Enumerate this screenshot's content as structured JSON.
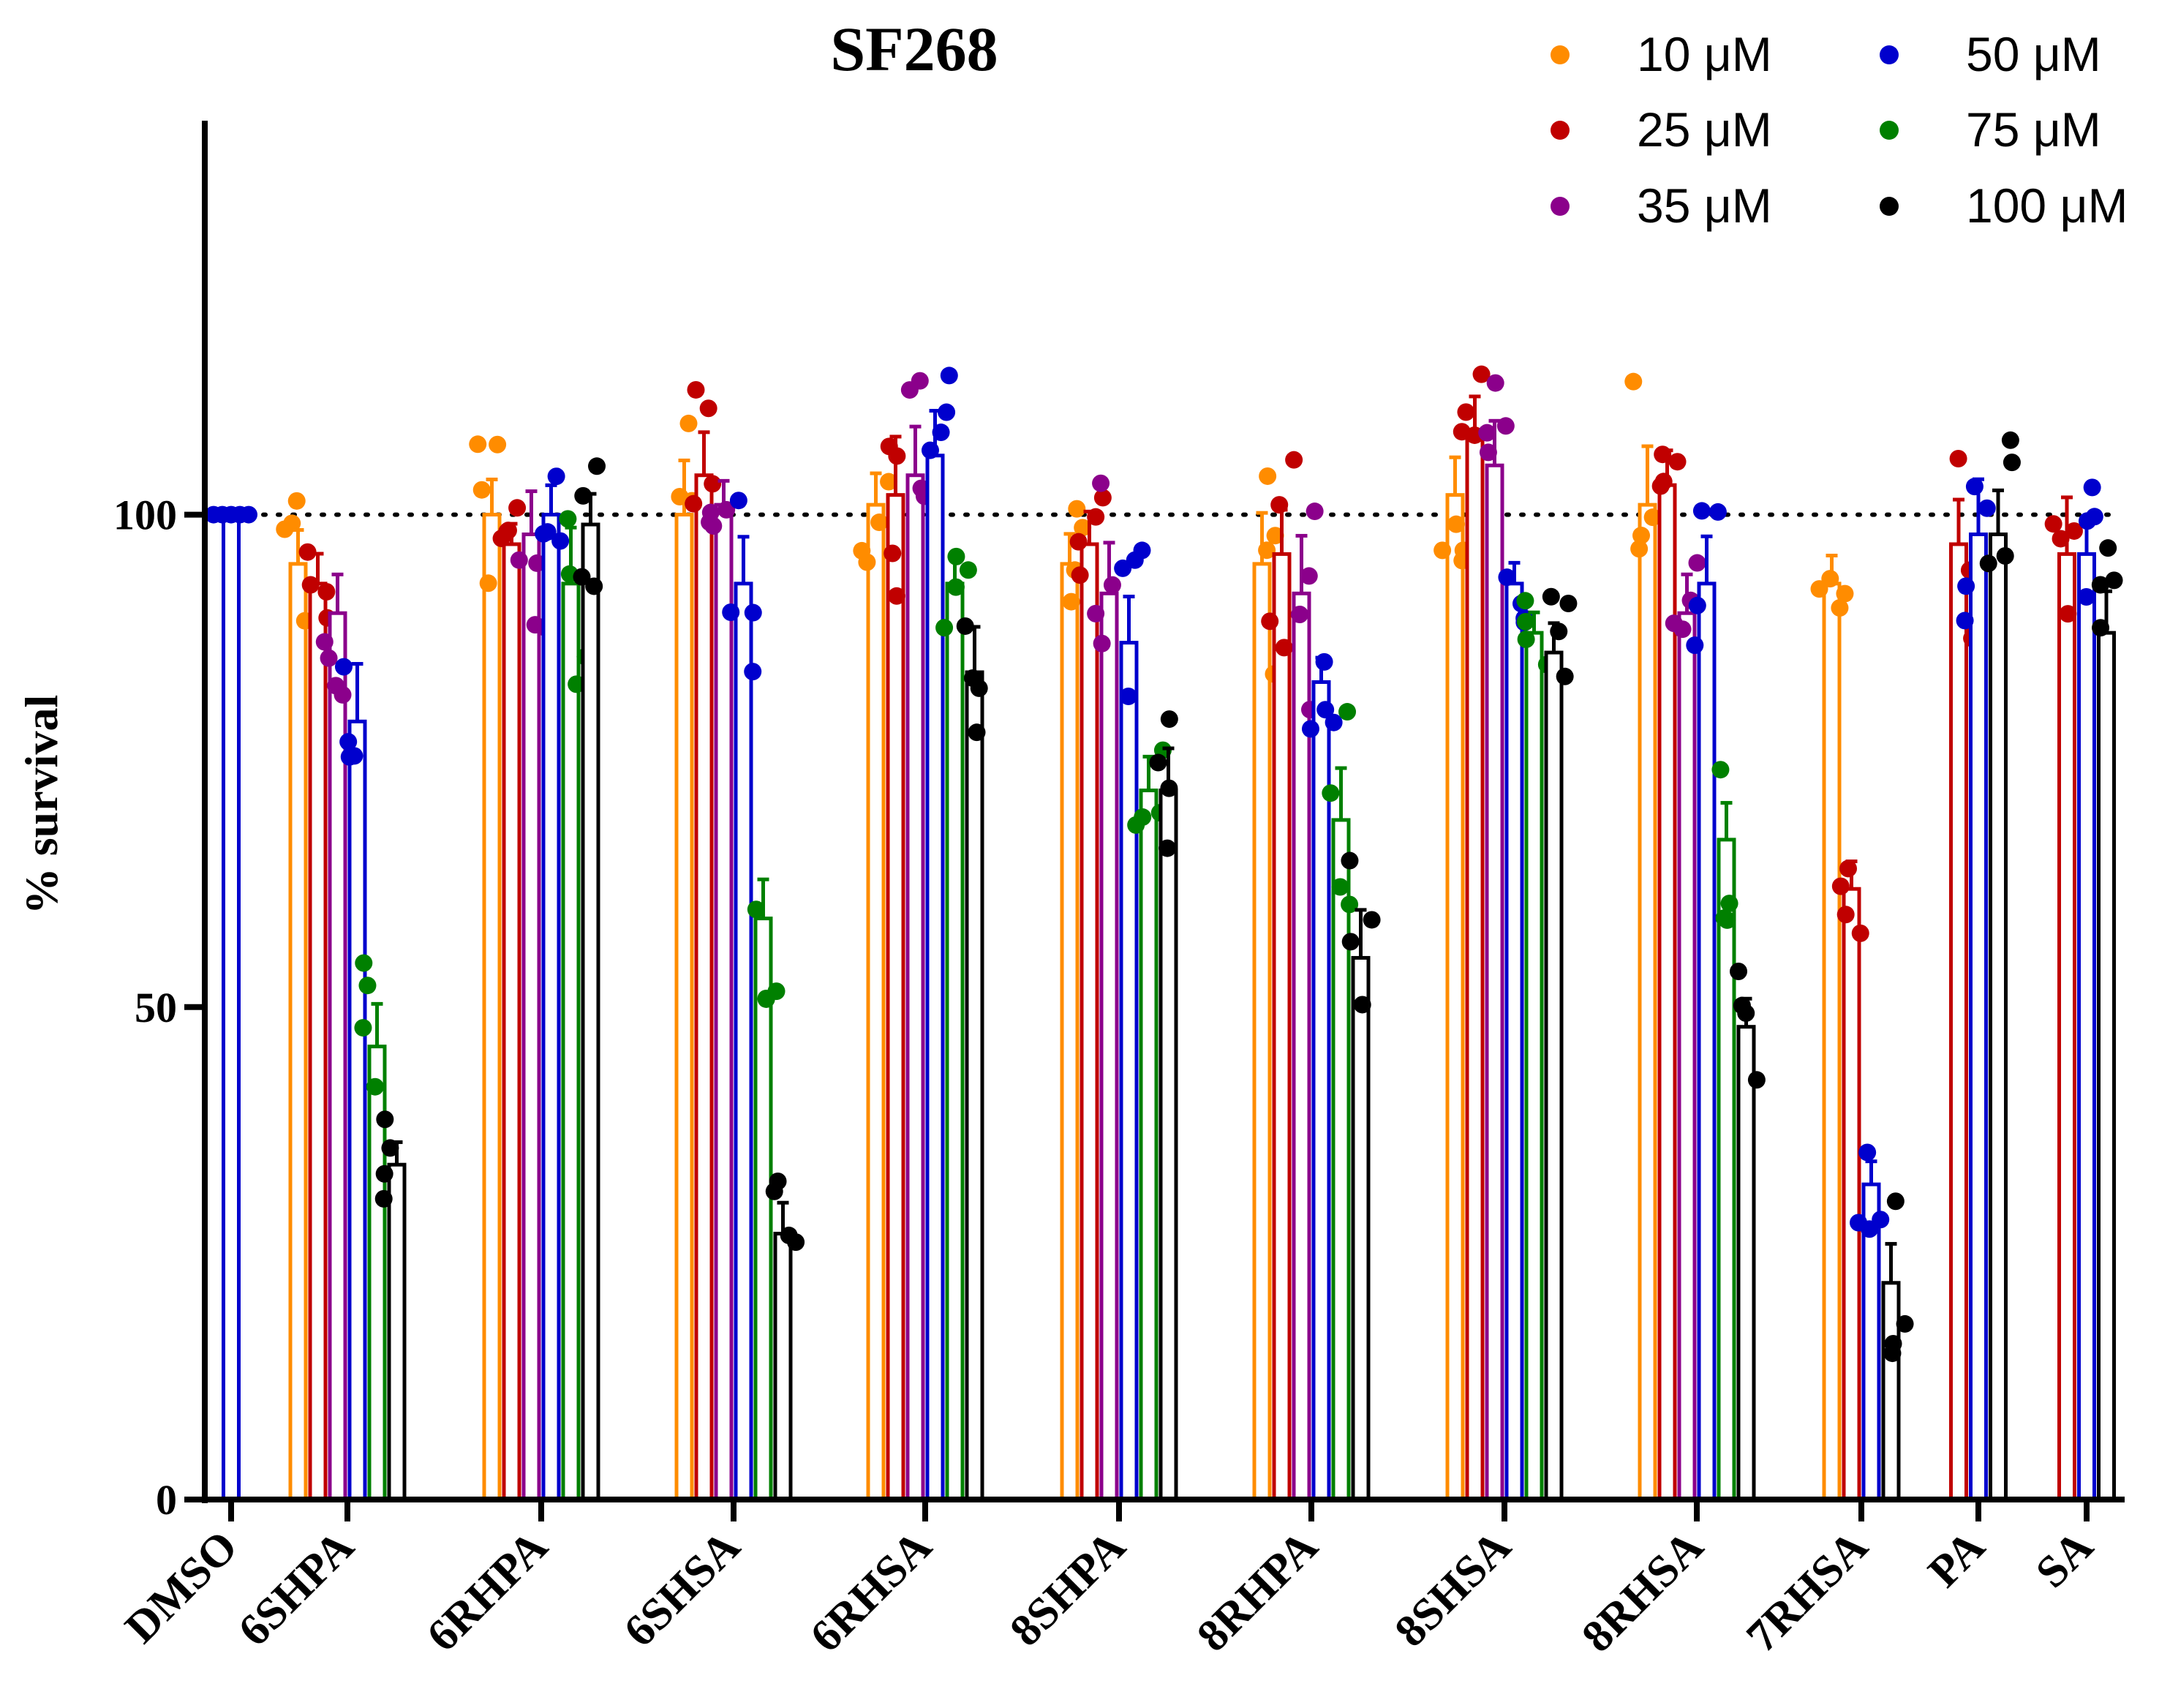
{
  "chart_data": {
    "type": "bar",
    "title": "SF268",
    "xlabel": "",
    "ylabel": "% survival",
    "ylim": [
      0,
      140
    ],
    "yticks": [
      "0",
      "50",
      "100"
    ],
    "reference_line": 100,
    "categories": [
      "DMSO",
      "6SHPA",
      "6RHPA",
      "6SHSA",
      "6RHSA",
      "8SHPA",
      "8RHPA",
      "8SHSA",
      "8RHSA",
      "7RHSA",
      "PA",
      "SA"
    ],
    "series": [
      {
        "name": "10 μM",
        "color": "#ff8c00",
        "values": [
          null,
          95,
          100,
          100,
          101,
          95,
          95,
          102,
          101,
          93,
          null,
          null
        ]
      },
      {
        "name": "25 μM",
        "color": "#c00000",
        "values": [
          null,
          93,
          97,
          104,
          102,
          97,
          96,
          108,
          103,
          62,
          97,
          96
        ]
      },
      {
        "name": "35 μM",
        "color": "#8b008b",
        "values": [
          null,
          90,
          98,
          101,
          104,
          92,
          92,
          105,
          90,
          null,
          null,
          null
        ]
      },
      {
        "name": "50 μM",
        "color": "#0000cd",
        "values": [
          100,
          79,
          100,
          93,
          106,
          87,
          83,
          93,
          93,
          32,
          98,
          96
        ]
      },
      {
        "name": "75 μM",
        "color": "#008000",
        "values": [
          null,
          46,
          93,
          59,
          93,
          72,
          69,
          88,
          67,
          null,
          null,
          null
        ]
      },
      {
        "name": "100 μM",
        "color": "#000000",
        "values": [
          null,
          34,
          99,
          27,
          84,
          72,
          55,
          86,
          48,
          22,
          98,
          88
        ]
      }
    ]
  }
}
